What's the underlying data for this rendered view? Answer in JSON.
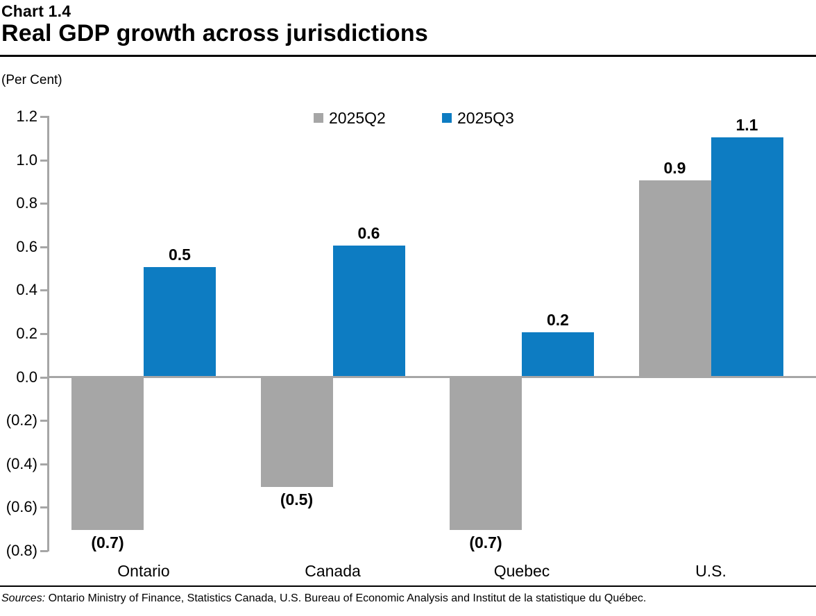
{
  "header": {
    "chart_number": "Chart 1.4",
    "title": "Real GDP growth across jurisdictions"
  },
  "chart_data": {
    "type": "bar",
    "title": "Real GDP growth across jurisdictions",
    "ylabel": "(Per Cent)",
    "categories": [
      "Ontario",
      "Canada",
      "Quebec",
      "U.S."
    ],
    "series": [
      {
        "name": "2025Q2",
        "color": "#a6a6a6",
        "values": [
          -0.7,
          -0.5,
          -0.7,
          0.9
        ],
        "labels": [
          "(0.7)",
          "(0.5)",
          "(0.7)",
          "0.9"
        ]
      },
      {
        "name": "2025Q3",
        "color": "#0d7cc2",
        "values": [
          0.5,
          0.6,
          0.2,
          1.1
        ],
        "labels": [
          "0.5",
          "0.6",
          "0.2",
          "1.1"
        ]
      }
    ],
    "ylim": [
      -0.8,
      1.2
    ],
    "ytick_interval": 0.2,
    "ytick_values": [
      1.2,
      1.0,
      0.8,
      0.6,
      0.4,
      0.2,
      0.0,
      -0.2,
      -0.4,
      -0.6,
      -0.8
    ],
    "ytick_labels": [
      "1.2",
      "1.0",
      "0.8",
      "0.6",
      "0.4",
      "0.2",
      "0.0",
      "(0.2)",
      "(0.4)",
      "(0.6)",
      "(0.8)"
    ],
    "negative_number_format": "parentheses",
    "legend_position": "top",
    "grid": false,
    "axis_color": "#a6a6a6"
  },
  "footer": {
    "sources_label": "Sources:",
    "sources_text": " Ontario Ministry of Finance, Statistics Canada, U.S. Bureau of Economic Analysis and Institut de la statistique du Québec."
  }
}
